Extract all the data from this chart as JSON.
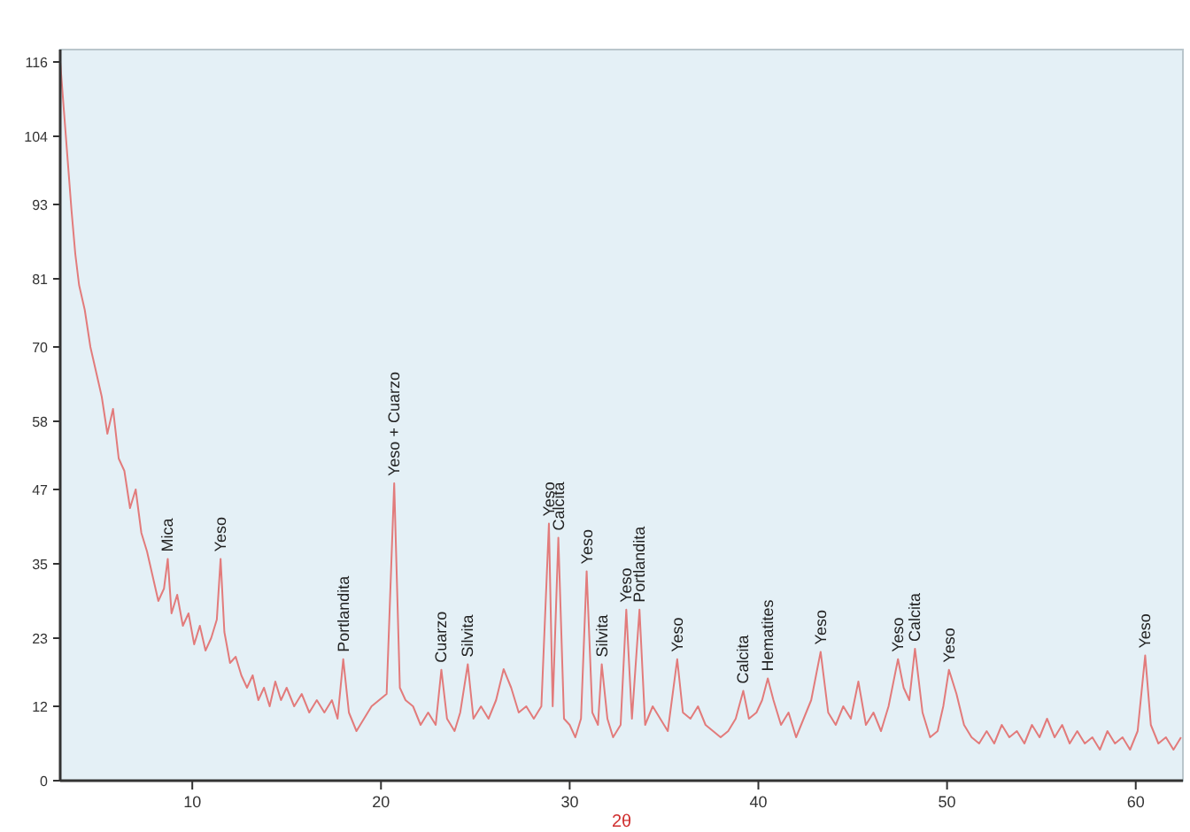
{
  "chart_data": {
    "type": "line",
    "xlabel": "2θ",
    "xlim": [
      3,
      62.5
    ],
    "xticks": [
      10,
      20,
      30,
      40,
      50,
      60
    ],
    "ylim": [
      0,
      118
    ],
    "yticks": [
      0,
      12,
      23,
      35,
      47,
      58,
      70,
      81,
      93,
      104,
      116
    ],
    "grid": false,
    "marker": "none",
    "line_style": "solid",
    "series": [
      {
        "color": "#e27b7b",
        "x": [
          3.0,
          3.2,
          3.4,
          3.6,
          3.8,
          4.0,
          4.3,
          4.6,
          4.9,
          5.2,
          5.5,
          5.8,
          6.1,
          6.4,
          6.7,
          7.0,
          7.3,
          7.6,
          7.9,
          8.2,
          8.5,
          8.7,
          8.9,
          9.2,
          9.5,
          9.8,
          10.1,
          10.4,
          10.7,
          11.0,
          11.3,
          11.5,
          11.7,
          12.0,
          12.3,
          12.6,
          12.9,
          13.2,
          13.5,
          13.8,
          14.1,
          14.4,
          14.7,
          15.0,
          15.4,
          15.8,
          16.2,
          16.6,
          17.0,
          17.4,
          17.7,
          18.0,
          18.3,
          18.7,
          19.1,
          19.5,
          19.9,
          20.3,
          20.7,
          21.0,
          21.3,
          21.7,
          22.1,
          22.5,
          22.9,
          23.2,
          23.5,
          23.9,
          24.2,
          24.6,
          24.9,
          25.3,
          25.7,
          26.1,
          26.5,
          26.9,
          27.3,
          27.7,
          28.1,
          28.5,
          28.9,
          29.1,
          29.4,
          29.7,
          30.0,
          30.3,
          30.6,
          30.9,
          31.2,
          31.5,
          31.7,
          32.0,
          32.3,
          32.7,
          33.0,
          33.3,
          33.7,
          34.0,
          34.4,
          34.8,
          35.2,
          35.7,
          36.0,
          36.4,
          36.8,
          37.2,
          37.6,
          38.0,
          38.4,
          38.8,
          39.2,
          39.5,
          39.9,
          40.2,
          40.5,
          40.8,
          41.2,
          41.6,
          42.0,
          42.4,
          42.8,
          43.3,
          43.7,
          44.1,
          44.5,
          44.9,
          45.3,
          45.7,
          46.1,
          46.5,
          46.9,
          47.4,
          47.7,
          48.0,
          48.3,
          48.7,
          49.1,
          49.5,
          49.8,
          50.1,
          50.5,
          50.9,
          51.3,
          51.7,
          52.1,
          52.5,
          52.9,
          53.3,
          53.7,
          54.1,
          54.5,
          54.9,
          55.3,
          55.7,
          56.1,
          56.5,
          56.9,
          57.3,
          57.7,
          58.1,
          58.5,
          58.9,
          59.3,
          59.7,
          60.1,
          60.5,
          60.8,
          61.2,
          61.6,
          62.0,
          62.4
        ],
        "values": [
          116,
          108,
          100,
          92,
          85,
          80,
          76,
          70,
          66,
          62,
          56,
          60,
          52,
          50,
          44,
          47,
          40,
          37,
          33,
          29,
          31,
          35.8,
          27,
          30,
          25,
          27,
          22,
          25,
          21,
          23,
          26,
          35.8,
          24,
          19,
          20,
          17,
          15,
          17,
          13,
          15,
          12,
          16,
          13,
          15,
          12,
          14,
          11,
          13,
          11,
          13,
          10,
          19.6,
          11,
          8,
          10,
          12,
          13,
          14,
          48,
          15,
          13,
          12,
          9,
          11,
          9,
          17.9,
          10,
          8,
          11,
          18.8,
          10,
          12,
          10,
          13,
          18,
          15,
          11,
          12,
          10,
          12,
          41.5,
          12,
          39.2,
          10,
          9,
          7,
          10,
          33.8,
          11,
          9,
          18.8,
          10,
          7,
          9,
          27.6,
          10,
          27.6,
          9,
          12,
          10,
          8,
          19.6,
          11,
          10,
          12,
          9,
          8,
          7,
          8,
          10,
          14.5,
          10,
          11,
          13,
          16.5,
          13,
          9,
          11,
          7,
          10,
          13,
          20.8,
          11,
          9,
          12,
          10,
          16,
          9,
          11,
          8,
          12,
          19.6,
          15,
          13,
          21.3,
          11,
          7,
          8,
          12,
          17.9,
          14,
          9,
          7,
          6,
          8,
          6,
          9,
          7,
          8,
          6,
          9,
          7,
          10,
          7,
          9,
          6,
          8,
          6,
          7,
          5,
          8,
          6,
          7,
          5,
          8,
          20.2,
          9,
          6,
          7,
          5,
          7
        ]
      }
    ],
    "annotations": [
      {
        "text": "Mica",
        "x": 8.7,
        "y": 35.8
      },
      {
        "text": "Yeso",
        "x": 11.5,
        "y": 35.8
      },
      {
        "text": "Portlandita",
        "x": 18.0,
        "y": 19.6
      },
      {
        "text": "Yeso + Cuarzo",
        "x": 20.7,
        "y": 48
      },
      {
        "text": "Cuarzo",
        "x": 23.2,
        "y": 17.9
      },
      {
        "text": "Silvita",
        "x": 24.6,
        "y": 18.8
      },
      {
        "text": "Yeso",
        "x": 28.9,
        "y": 41.5
      },
      {
        "text": "Calcita",
        "x": 29.4,
        "y": 39.2
      },
      {
        "text": "Yeso",
        "x": 30.9,
        "y": 33.8
      },
      {
        "text": "Silvita",
        "x": 31.7,
        "y": 18.8
      },
      {
        "text": "Yeso",
        "x": 33.0,
        "y": 27.6
      },
      {
        "text": "Portlandita",
        "x": 33.7,
        "y": 27.6
      },
      {
        "text": "Yeso",
        "x": 35.7,
        "y": 19.6
      },
      {
        "text": "Calcita",
        "x": 39.2,
        "y": 14.5
      },
      {
        "text": "Hematites",
        "x": 40.5,
        "y": 16.5
      },
      {
        "text": "Yeso",
        "x": 43.3,
        "y": 20.8
      },
      {
        "text": "Yeso",
        "x": 47.4,
        "y": 19.6
      },
      {
        "text": "Calcita",
        "x": 48.3,
        "y": 21.3
      },
      {
        "text": "Yeso",
        "x": 50.1,
        "y": 17.9
      },
      {
        "text": "Yeso",
        "x": 60.5,
        "y": 20.2
      }
    ]
  }
}
